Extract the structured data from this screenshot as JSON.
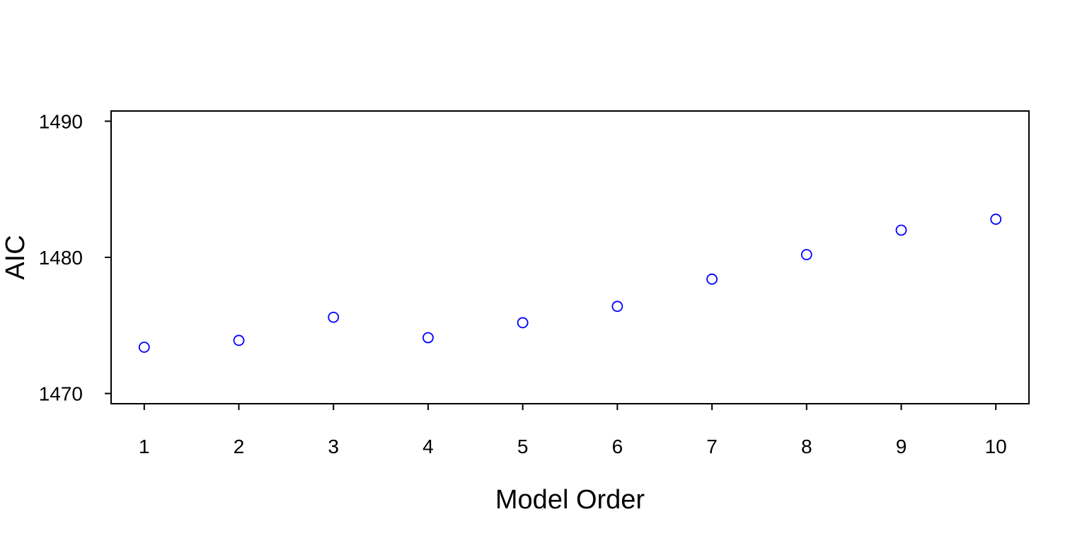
{
  "chart_data": {
    "type": "scatter",
    "title": "",
    "xlabel": "Model Order",
    "ylabel": "AIC",
    "x": [
      1,
      2,
      3,
      4,
      5,
      6,
      7,
      8,
      9,
      10
    ],
    "y": [
      1473.4,
      1473.9,
      1475.6,
      1474.1,
      1475.2,
      1476.4,
      1478.4,
      1480.2,
      1482.0,
      1482.8
    ],
    "xticks": [
      "1",
      "2",
      "3",
      "4",
      "5",
      "6",
      "7",
      "8",
      "9",
      "10"
    ],
    "yticks": [
      "1470",
      "1480",
      "1490"
    ],
    "xlim": [
      0.65,
      10.35
    ],
    "ylim": [
      1469.25,
      1490.75
    ],
    "marker": "open-circle",
    "point_color": "#0000ff",
    "grid": false,
    "legend": "none"
  }
}
